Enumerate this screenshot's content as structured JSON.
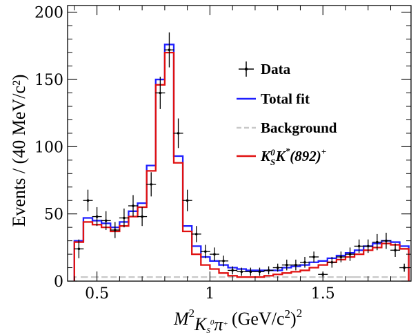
{
  "chart_data": {
    "type": "histogram",
    "xlabel": {
      "main": "M",
      "sup": "2",
      "sub": "K",
      "sub_sub": "S",
      "sub_sup": "0",
      "sub_tail": "π",
      "sub_tail_sup": "+",
      "units": "(GeV/c",
      "units_sup": "2",
      "units_close": ")",
      "units_close_sup": "2"
    },
    "ylabel": "Events / (40 MeV/c²)",
    "xlim": [
      0.37,
      1.89
    ],
    "ylim": [
      0,
      205
    ],
    "x_ticks": [
      {
        "value": 0.5,
        "label": "0.5"
      },
      {
        "value": 1.0,
        "label": "1"
      },
      {
        "value": 1.5,
        "label": "1.5"
      }
    ],
    "y_ticks": [
      {
        "value": 0,
        "label": "0"
      },
      {
        "value": 50,
        "label": "50"
      },
      {
        "value": 100,
        "label": "100"
      },
      {
        "value": 150,
        "label": "150"
      },
      {
        "value": 200,
        "label": "200"
      }
    ],
    "bin_edges": [
      0.4,
      0.44,
      0.48,
      0.52,
      0.56,
      0.6,
      0.64,
      0.68,
      0.72,
      0.76,
      0.8,
      0.84,
      0.88,
      0.92,
      0.96,
      1.0,
      1.04,
      1.08,
      1.12,
      1.16,
      1.2,
      1.24,
      1.28,
      1.32,
      1.36,
      1.4,
      1.44,
      1.48,
      1.52,
      1.56,
      1.6,
      1.64,
      1.68,
      1.72,
      1.76,
      1.8,
      1.84,
      1.88
    ],
    "data": {
      "name": "Data",
      "x": [
        0.42,
        0.46,
        0.5,
        0.54,
        0.58,
        0.62,
        0.66,
        0.7,
        0.74,
        0.78,
        0.82,
        0.86,
        0.9,
        0.94,
        0.98,
        1.02,
        1.06,
        1.1,
        1.14,
        1.18,
        1.22,
        1.26,
        1.3,
        1.34,
        1.38,
        1.42,
        1.46,
        1.5,
        1.54,
        1.58,
        1.62,
        1.66,
        1.7,
        1.74,
        1.78,
        1.82,
        1.86
      ],
      "y": [
        24,
        60,
        48,
        45,
        38,
        47,
        56,
        48,
        72,
        140,
        172,
        110,
        60,
        35,
        22,
        20,
        15,
        8,
        7,
        7,
        7,
        8,
        10,
        12,
        12,
        14,
        18,
        5,
        14,
        18,
        20,
        26,
        26,
        29,
        30,
        23,
        10
      ],
      "err": [
        7,
        8,
        7,
        7,
        6,
        7,
        8,
        7,
        9,
        12,
        13,
        11,
        8,
        6,
        5,
        5,
        4,
        3,
        3,
        3,
        3,
        3,
        3,
        4,
        4,
        4,
        4,
        2,
        4,
        4,
        5,
        5,
        5,
        6,
        6,
        5,
        3
      ]
    },
    "series": [
      {
        "name": "Total fit",
        "color": "#1f1fff",
        "values": [
          30,
          47,
          45,
          43,
          40,
          44,
          52,
          58,
          86,
          150,
          176,
          93,
          41,
          26,
          18,
          15,
          12,
          10,
          9,
          8,
          8,
          8,
          8,
          10,
          11,
          12,
          14,
          15,
          17,
          19,
          21,
          23,
          26,
          28,
          30,
          29,
          26
        ]
      },
      {
        "name": "Background",
        "color": "#c8c8c8",
        "dashed": true,
        "values": [
          3,
          3,
          3,
          3,
          3,
          3,
          3,
          3,
          3,
          3,
          3,
          3,
          3,
          3,
          3,
          3,
          3,
          3,
          3,
          3,
          3,
          3,
          3,
          3,
          3,
          3,
          3,
          3,
          3,
          3,
          3,
          3,
          3,
          3,
          3,
          3,
          3
        ]
      },
      {
        "name": "K_S^0 K^*(892)^+",
        "color": "#e01010",
        "values": [
          29,
          44,
          42,
          40,
          37,
          41,
          48,
          55,
          82,
          146,
          170,
          88,
          37,
          20,
          12,
          9,
          6,
          4,
          3,
          3,
          3,
          4,
          5,
          6,
          7,
          8,
          10,
          12,
          14,
          16,
          18,
          20,
          23,
          25,
          28,
          27,
          24
        ]
      }
    ],
    "legend": {
      "position": "top-right",
      "entries": [
        {
          "label": "Data"
        },
        {
          "label": "Total fit"
        },
        {
          "label": "Background"
        },
        {
          "label_main": "K",
          "label_s": "S",
          "label_0": "0",
          "label_k": "K",
          "label_star": "*",
          "label_paren": "(892)",
          "label_plus": "+"
        }
      ]
    }
  }
}
